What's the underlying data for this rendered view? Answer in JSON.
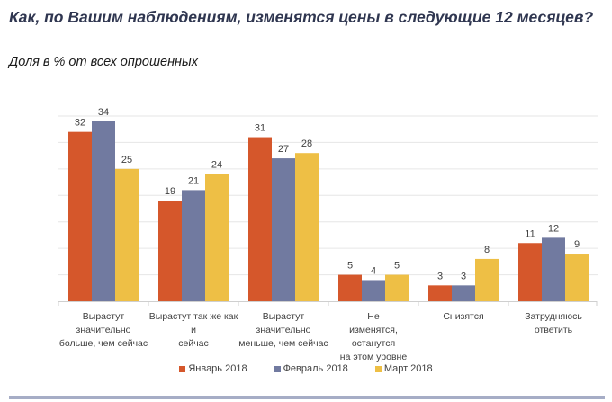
{
  "header": {
    "title": "Как, по Вашим наблюдениям, изменятся цены в следующие 12 месяцев?",
    "subtitle": "Доля в % от всех опрошенных"
  },
  "chart_data": {
    "type": "bar",
    "title": "Как, по Вашим наблюдениям, изменятся цены в следующие 12 месяцев?",
    "subtitle": "Доля в % от всех опрошенных",
    "xlabel": "",
    "ylabel": "",
    "ylim": [
      0,
      35
    ],
    "grid": true,
    "legend_position": "bottom",
    "categories": [
      "Вырастут значительно больше, чем сейчас",
      "Вырастут так же как и сейчас",
      "Вырастут значительно меньше, чем сейчас",
      "Не изменятся, останутся на этом уровне",
      "Снизятся",
      "Затрудняюсь ответить"
    ],
    "category_lines": [
      [
        "Вырастут",
        "значительно",
        "больше, чем сейчас"
      ],
      [
        "Вырастут так же как и",
        "сейчас"
      ],
      [
        "Вырастут",
        "значительно",
        "меньше, чем сейчас"
      ],
      [
        "Не",
        "изменятся, останутся",
        "на этом уровне"
      ],
      [
        "Снизятся"
      ],
      [
        "Затрудняюсь",
        "ответить"
      ]
    ],
    "series": [
      {
        "name": "Январь 2018",
        "color": "#d5572b",
        "values": [
          32,
          19,
          31,
          5,
          3,
          11
        ]
      },
      {
        "name": "Февраль 2018",
        "color": "#717aa0",
        "values": [
          34,
          21,
          27,
          4,
          3,
          12
        ]
      },
      {
        "name": "Март 2018",
        "color": "#eebf45",
        "values": [
          25,
          24,
          28,
          5,
          8,
          9
        ]
      }
    ]
  }
}
